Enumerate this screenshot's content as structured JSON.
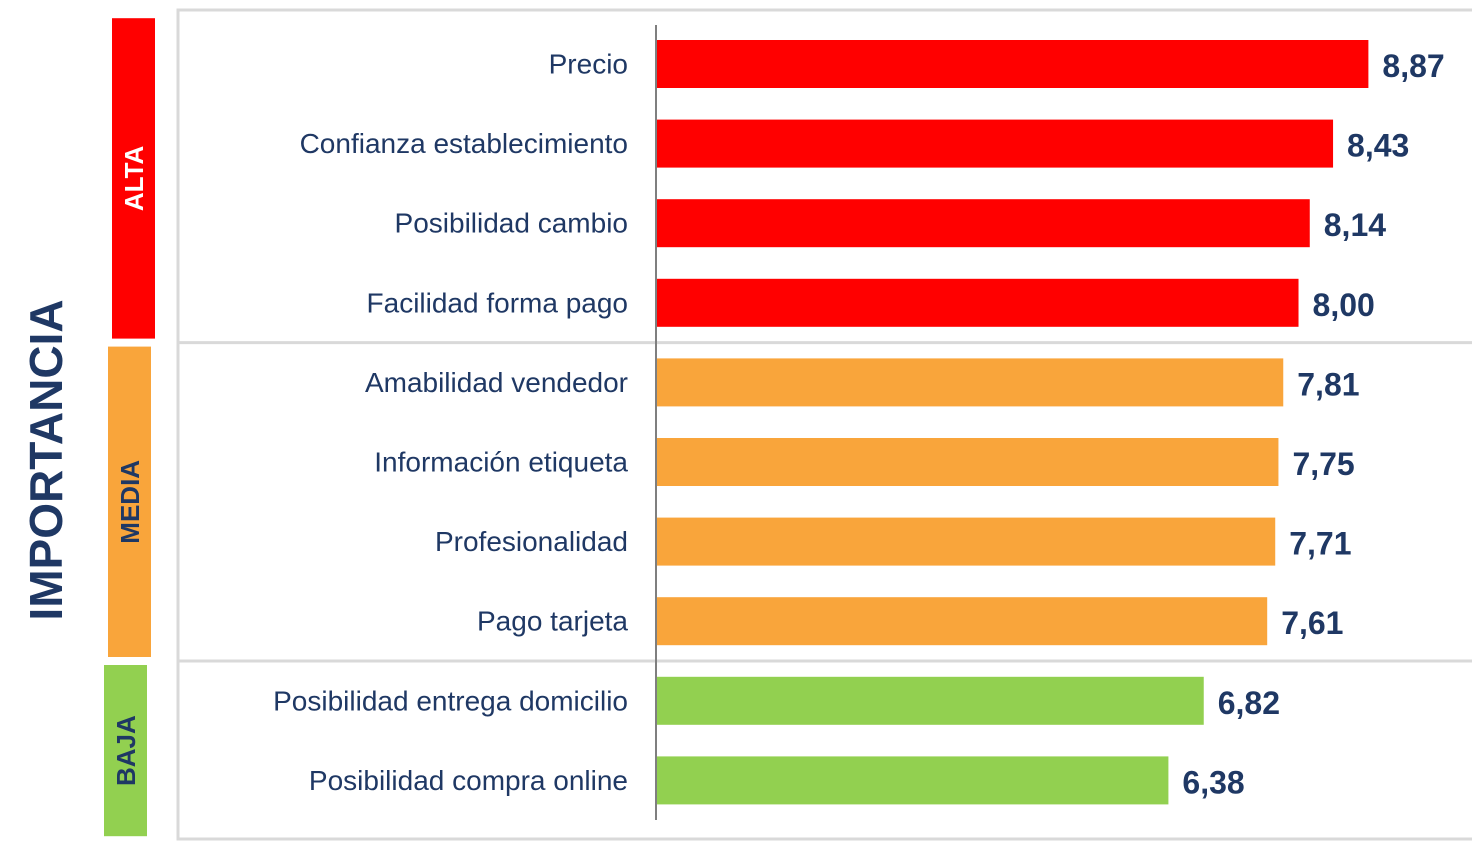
{
  "chart_data": {
    "type": "bar",
    "orientation": "horizontal",
    "ylabel": "IMPORTANCIA",
    "xlim": [
      0,
      10.16
    ],
    "groups": [
      {
        "label": "ALTA",
        "color": "#ff0000",
        "label_color": "#ffffff",
        "categories": [
          "Precio",
          "Confianza establecimiento",
          "Posibilidad cambio",
          "Facilidad forma pago"
        ],
        "values": [
          8.87,
          8.43,
          8.14,
          8.0
        ],
        "value_labels": [
          "8,87",
          "8,43",
          "8,14",
          "8,00"
        ]
      },
      {
        "label": "MEDIA",
        "color": "#f9a53b",
        "label_color": "#1f3864",
        "categories": [
          "Amabilidad vendedor",
          "Información etiqueta",
          "Profesionalidad",
          "Pago tarjeta"
        ],
        "values": [
          7.81,
          7.75,
          7.71,
          7.61
        ],
        "value_labels": [
          "7,81",
          "7,75",
          "7,71",
          "7,61"
        ]
      },
      {
        "label": "BAJA",
        "color": "#92d050",
        "label_color": "#1f3864",
        "categories": [
          "Posibilidad entrega domicilio",
          "Posibilidad compra online"
        ],
        "values": [
          6.82,
          6.38
        ],
        "value_labels": [
          "6,82",
          "6,38"
        ]
      }
    ]
  }
}
